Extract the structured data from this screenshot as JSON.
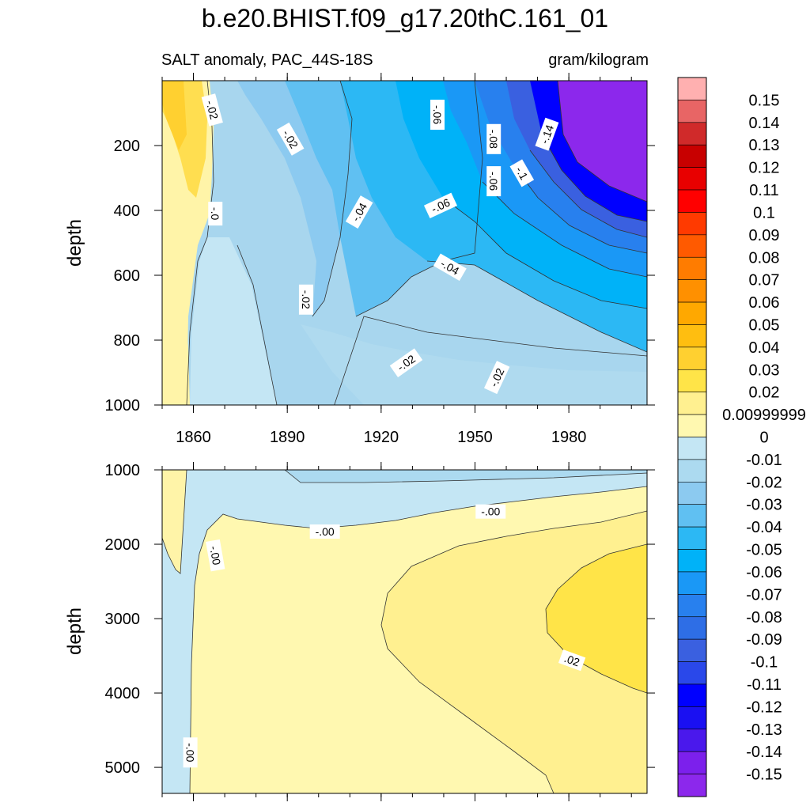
{
  "chart_data": [
    {
      "type": "heatmap",
      "title": "b.e20.BHIST.f09_g17.20thC.161_01",
      "subtitle_left": "SALT anomaly, PAC_44S-18S",
      "subtitle_right": "gram/kilogram",
      "xlabel": "",
      "ylabel": "depth",
      "xlim": [
        1850,
        2005
      ],
      "ylim": [
        1000,
        0
      ],
      "xticks": [
        "1860",
        "1890",
        "1920",
        "1950",
        "1980"
      ],
      "yticks": [
        "200",
        "400",
        "600",
        "800",
        "1000"
      ],
      "contour_labels": [
        {
          "text": "-.02",
          "x": 1866,
          "y": 90,
          "rot": 75
        },
        {
          "text": "-.02",
          "x": 1891,
          "y": 180,
          "rot": 60
        },
        {
          "text": "-.06",
          "x": 1938,
          "y": 105,
          "rot": 90
        },
        {
          "text": "-.08",
          "x": 1956,
          "y": 180,
          "rot": 90
        },
        {
          "text": "-.14",
          "x": 1973,
          "y": 165,
          "rot": -70
        },
        {
          "text": "-.1",
          "x": 1965,
          "y": 285,
          "rot": 60
        },
        {
          "text": "-.06",
          "x": 1956,
          "y": 310,
          "rot": 90
        },
        {
          "text": "-.06",
          "x": 1939,
          "y": 385,
          "rot": -25
        },
        {
          "text": "-.04",
          "x": 1913,
          "y": 405,
          "rot": -60
        },
        {
          "text": "-.0",
          "x": 1867,
          "y": 410,
          "rot": 90
        },
        {
          "text": "-.04",
          "x": 1942,
          "y": 575,
          "rot": 30
        },
        {
          "text": "-.02",
          "x": 1896,
          "y": 675,
          "rot": 90
        },
        {
          "text": "-.02",
          "x": 1928,
          "y": 870,
          "rot": -35
        },
        {
          "text": "-.02",
          "x": 1957,
          "y": 915,
          "rot": -65
        }
      ]
    },
    {
      "type": "heatmap",
      "xlabel": "",
      "ylabel": "depth",
      "xlim": [
        1850,
        2005
      ],
      "ylim": [
        5350,
        1000
      ],
      "yticks": [
        "1000",
        "2000",
        "3000",
        "4000",
        "5000"
      ],
      "contour_labels": [
        {
          "text": "-.00",
          "x": 1867,
          "y": 2150,
          "rot": 80
        },
        {
          "text": "-.00",
          "x": 1902,
          "y": 1830,
          "rot": 0
        },
        {
          "text": "-.00",
          "x": 1955,
          "y": 1560,
          "rot": 0
        },
        {
          "text": ".02",
          "x": 1981,
          "y": 3560,
          "rot": 20
        },
        {
          "text": "-.00",
          "x": 1859,
          "y": 4800,
          "rot": 90
        }
      ]
    },
    {
      "type": "colorbar",
      "levels": [
        "0.15",
        "0.14",
        "0.13",
        "0.12",
        "0.11",
        "0.1",
        "0.09",
        "0.08",
        "0.07",
        "0.06",
        "0.05",
        "0.04",
        "0.03",
        "0.02",
        "0.00999999",
        "0",
        "-0.01",
        "-0.02",
        "-0.03",
        "-0.04",
        "-0.05",
        "-0.06",
        "-0.07",
        "-0.08",
        "-0.09",
        "-0.1",
        "-0.11",
        "-0.12",
        "-0.13",
        "-0.14",
        "-0.15"
      ],
      "colors": [
        "#ffb0b0",
        "#e86565",
        "#d02a2a",
        "#c80000",
        "#e80000",
        "#ff0000",
        "#ff3a00",
        "#ff5a00",
        "#ff7c00",
        "#ff9000",
        "#ffa800",
        "#ffbe10",
        "#ffd030",
        "#ffe448",
        "#fff090",
        "#fff8b0",
        "#c4e6f4",
        "#acdaf0",
        "#8ccaf0",
        "#60c0f2",
        "#2cb8f4",
        "#00b2f8",
        "#1a98f6",
        "#2880ee",
        "#2e6ee6",
        "#3a60e0",
        "#2a48ea",
        "#0000ff",
        "#1a10f2",
        "#4a18ec",
        "#7c20ec",
        "#8c28ec"
      ]
    }
  ]
}
